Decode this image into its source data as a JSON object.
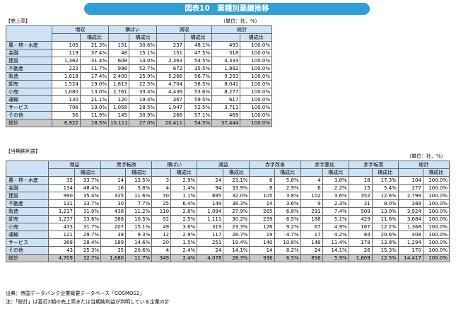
{
  "banner": "図表10　業種別業績推移",
  "sales": {
    "label": "【売上高】",
    "unit": "（単位：社、%）",
    "groups": [
      "増収",
      "横ばい",
      "減収",
      "総計"
    ],
    "sub": "構成比",
    "rows": [
      {
        "name": "農・林・水産",
        "v": [
          "105",
          "21.3%",
          "151",
          "30.6%",
          "237",
          "48.1%",
          "493",
          "100.0%"
        ]
      },
      {
        "name": "金融",
        "v": [
          "119",
          "37.4%",
          "48",
          "15.1%",
          "151",
          "47.5%",
          "318",
          "100.0%"
        ]
      },
      {
        "name": "建設",
        "v": [
          "1,362",
          "31.4%",
          "608",
          "14.0%",
          "2,363",
          "54.5%",
          "4,333",
          "100.0%"
        ]
      },
      {
        "name": "不動産",
        "v": [
          "222",
          "11.7%",
          "998",
          "52.7%",
          "672",
          "35.5%",
          "1,892",
          "100.0%"
        ]
      },
      {
        "name": "製造",
        "v": [
          "1,618",
          "17.4%",
          "2,409",
          "25.9%",
          "5,266",
          "56.7%",
          "9,293",
          "100.0%"
        ]
      },
      {
        "name": "卸売",
        "v": [
          "1,524",
          "19.0%",
          "1,813",
          "22.5%",
          "4,704",
          "58.5%",
          "8,041",
          "100.0%"
        ]
      },
      {
        "name": "小売",
        "v": [
          "1,080",
          "13.0%",
          "2,761",
          "33.4%",
          "4,436",
          "53.6%",
          "8,277",
          "100.0%"
        ]
      },
      {
        "name": "運輸",
        "v": [
          "130",
          "21.1%",
          "120",
          "19.4%",
          "367",
          "59.5%",
          "617",
          "100.0%"
        ]
      },
      {
        "name": "サービス",
        "v": [
          "706",
          "19.0%",
          "1,058",
          "28.5%",
          "1,947",
          "52.5%",
          "3,711",
          "100.0%"
        ]
      },
      {
        "name": "その他",
        "v": [
          "56",
          "11.9%",
          "145",
          "30.9%",
          "268",
          "57.1%",
          "469",
          "100.0%"
        ]
      }
    ],
    "total": {
      "name": "総計",
      "v": [
        "6,922",
        "18.5%",
        "10,111",
        "27.0%",
        "20,411",
        "54.5%",
        "37,444",
        "100.0%"
      ]
    }
  },
  "profit": {
    "label": "【当期純利益】",
    "unit": "（単位：社、%）",
    "groups": [
      "増益",
      "黒字転換",
      "横ばい",
      "減益",
      "赤字改善",
      "赤字悪化",
      "赤字転落",
      "総計"
    ],
    "sub": "構成比",
    "rows": [
      {
        "name": "農・林・水産",
        "v": [
          "35",
          "33.7%",
          "14",
          "13.5%",
          "3",
          "2.9%",
          "24",
          "23.1%",
          "6",
          "5.8%",
          "4",
          "3.8%",
          "18",
          "17.3%",
          "104",
          "100.0%"
        ]
      },
      {
        "name": "金融",
        "v": [
          "134",
          "48.4%",
          "16",
          "5.8%",
          "4",
          "1.4%",
          "94",
          "33.9%",
          "8",
          "2.9%",
          "6",
          "2.2%",
          "15",
          "5.4%",
          "277",
          "100.0%"
        ]
      },
      {
        "name": "建設",
        "v": [
          "990",
          "35.4%",
          "325",
          "11.6%",
          "30",
          "1.1%",
          "895",
          "32.0%",
          "105",
          "3.8%",
          "102",
          "3.6%",
          "352",
          "12.6%",
          "2,799",
          "100.0%"
        ]
      },
      {
        "name": "不動産",
        "v": [
          "131",
          "33.7%",
          "30",
          "7.7%",
          "25",
          "6.4%",
          "149",
          "38.3%",
          "14",
          "3.6%",
          "9",
          "2.3%",
          "31",
          "8.0%",
          "389",
          "100.0%"
        ]
      },
      {
        "name": "製造",
        "v": [
          "1,217",
          "31.0%",
          "438",
          "11.2%",
          "110",
          "2.8%",
          "1,094",
          "27.9%",
          "265",
          "6.8%",
          "291",
          "7.4%",
          "509",
          "13.0%",
          "3,924",
          "100.0%"
        ]
      },
      {
        "name": "卸売",
        "v": [
          "1,237",
          "33.6%",
          "388",
          "10.5%",
          "92",
          "2.5%",
          "1,111",
          "30.2%",
          "239",
          "6.5%",
          "188",
          "5.1%",
          "429",
          "11.6%",
          "3,684",
          "100.0%"
        ]
      },
      {
        "name": "小売",
        "v": [
          "433",
          "31.7%",
          "207",
          "15.1%",
          "49",
          "3.6%",
          "319",
          "23.3%",
          "126",
          "9.2%",
          "67",
          "4.9%",
          "167",
          "12.2%",
          "1,368",
          "100.0%"
        ]
      },
      {
        "name": "運輸",
        "v": [
          "121",
          "29.7%",
          "38",
          "9.3%",
          "12",
          "2.9%",
          "117",
          "28.7%",
          "19",
          "4.7%",
          "17",
          "4.2%",
          "84",
          "20.6%",
          "408",
          "100.0%"
        ]
      },
      {
        "name": "サービス",
        "v": [
          "368",
          "28.4%",
          "189",
          "14.6%",
          "20",
          "1.5%",
          "251",
          "19.4%",
          "140",
          "10.8%",
          "148",
          "11.4%",
          "178",
          "13.8%",
          "1,294",
          "100.0%"
        ]
      },
      {
        "name": "その他",
        "v": [
          "43",
          "25.3%",
          "35",
          "20.6%",
          "4",
          "2.4%",
          "24",
          "14.1%",
          "14",
          "8.2%",
          "24",
          "14.1%",
          "26",
          "15.3%",
          "170",
          "100.0%"
        ]
      }
    ],
    "total": {
      "name": "総計",
      "v": [
        "4,709",
        "32.7%",
        "1,680",
        "11.7%",
        "349",
        "2.4%",
        "4,078",
        "28.3%",
        "936",
        "6.5%",
        "856",
        "5.9%",
        "1,809",
        "12.5%",
        "14,417",
        "100.0%"
      ]
    }
  },
  "source_line": "出典：帝国データバンク企業概要データベース「COSMOS2」",
  "note_line": "注：「総計」は直近2期の売上高または当期純利益が判明している企業の計"
}
